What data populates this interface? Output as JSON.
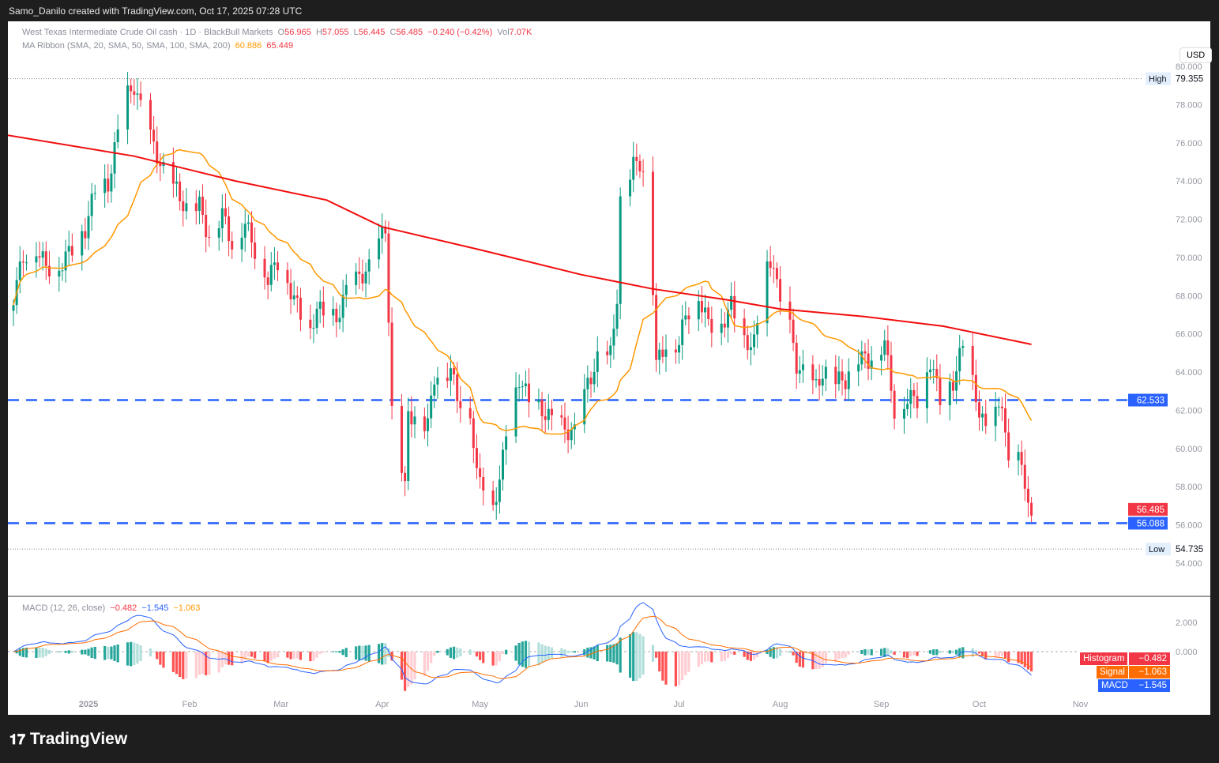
{
  "header": {
    "credit": "Samo_Danilo created with TradingView.com, Oct 17, 2025 07:28 UTC"
  },
  "legend": {
    "symbol": "West Texas Intermediate Crude Oil cash · 1D · BlackBull Markets",
    "o": "56.965",
    "h": "57.055",
    "l": "56.445",
    "c": "56.485",
    "chg": "−0.240 (−0.42%)",
    "vol": "7.07K",
    "ma_label": "MA Ribbon (SMA, 20, SMA, 50, SMA, 100, SMA, 200)",
    "ma20": "60.886",
    "ma200": "65.449",
    "macd_label": "MACD (12, 26, close)",
    "macd_hist": "−0.482",
    "macd_macd": "−1.545",
    "macd_signal": "−1.063"
  },
  "currency": "USD",
  "brand": "TradingView",
  "colors": {
    "up": "#089981",
    "down": "#f23645",
    "ma20": "#ff9800",
    "ma200": "#f20d0d",
    "level": "#2962ff",
    "macd": "#2962ff",
    "signal": "#ff6d00"
  },
  "chart_data": [
    {
      "type": "candlestick",
      "ylim": [
        53.5,
        81
      ],
      "yticks": [
        "80.000",
        "78.000",
        "76.000",
        "74.000",
        "72.000",
        "70.000",
        "68.000",
        "66.000",
        "64.000",
        "62.000",
        "60.000",
        "58.000",
        "56.000",
        "54.000"
      ],
      "xticks": [
        {
          "label": "2025",
          "date": "2025-01-01"
        },
        {
          "label": "Feb",
          "date": "2025-02-01"
        },
        {
          "label": "Mar",
          "date": "2025-03-01"
        },
        {
          "label": "Apr",
          "date": "2025-04-01"
        },
        {
          "label": "May",
          "date": "2025-05-01"
        },
        {
          "label": "Jun",
          "date": "2025-06-01"
        },
        {
          "label": "Jul",
          "date": "2025-07-01"
        },
        {
          "label": "Aug",
          "date": "2025-08-01"
        },
        {
          "label": "Sep",
          "date": "2025-09-01"
        },
        {
          "label": "Oct",
          "date": "2025-10-01"
        },
        {
          "label": "Nov",
          "date": "2025-11-01"
        }
      ],
      "closes": [
        [
          "2024-12-09",
          68.0
        ],
        [
          "2024-12-12",
          70.0
        ],
        [
          "2024-12-16",
          70.5
        ],
        [
          "2024-12-19",
          69.5
        ],
        [
          "2024-12-23",
          69.5
        ],
        [
          "2024-12-27",
          70.5
        ],
        [
          "2024-12-31",
          71.5
        ],
        [
          "2025-01-03",
          73.5
        ],
        [
          "2025-01-07",
          73.8
        ],
        [
          "2025-01-10",
          76.5
        ],
        [
          "2025-01-13",
          78.5
        ],
        [
          "2025-01-15",
          79.0
        ],
        [
          "2025-01-17",
          77.8
        ],
        [
          "2025-01-21",
          75.8
        ],
        [
          "2025-01-24",
          74.5
        ],
        [
          "2025-01-28",
          73.5
        ],
        [
          "2025-01-31",
          72.5
        ],
        [
          "2025-02-04",
          72.7
        ],
        [
          "2025-02-07",
          71.0
        ],
        [
          "2025-02-11",
          72.3
        ],
        [
          "2025-02-14",
          70.7
        ],
        [
          "2025-02-18",
          71.8
        ],
        [
          "2025-02-21",
          70.4
        ],
        [
          "2025-02-25",
          68.9
        ],
        [
          "2025-02-28",
          69.8
        ],
        [
          "2025-03-04",
          68.3
        ],
        [
          "2025-03-07",
          67.0
        ],
        [
          "2025-03-10",
          66.0
        ],
        [
          "2025-03-12",
          67.5
        ],
        [
          "2025-03-14",
          66.9
        ],
        [
          "2025-03-18",
          66.8
        ],
        [
          "2025-03-21",
          68.2
        ],
        [
          "2025-03-25",
          69.0
        ],
        [
          "2025-03-28",
          69.4
        ],
        [
          "2025-04-01",
          71.2
        ],
        [
          "2025-04-02",
          71.6
        ],
        [
          "2025-04-03",
          66.9
        ],
        [
          "2025-04-04",
          61.8
        ],
        [
          "2025-04-08",
          57.8
        ],
        [
          "2025-04-09",
          62.0
        ],
        [
          "2025-04-11",
          61.5
        ],
        [
          "2025-04-15",
          61.2
        ],
        [
          "2025-04-17",
          63.8
        ],
        [
          "2025-04-22",
          64.1
        ],
        [
          "2025-04-24",
          62.7
        ],
        [
          "2025-04-28",
          62.0
        ],
        [
          "2025-04-30",
          58.5
        ],
        [
          "2025-05-02",
          58.3
        ],
        [
          "2025-05-05",
          57.2
        ],
        [
          "2025-05-07",
          58.1
        ],
        [
          "2025-05-09",
          61.0
        ],
        [
          "2025-05-13",
          63.7
        ],
        [
          "2025-05-16",
          62.5
        ],
        [
          "2025-05-20",
          62.0
        ],
        [
          "2025-05-23",
          61.5
        ],
        [
          "2025-05-27",
          61.0
        ],
        [
          "2025-05-30",
          60.8
        ],
        [
          "2025-06-03",
          63.4
        ],
        [
          "2025-06-06",
          64.6
        ],
        [
          "2025-06-10",
          64.9
        ],
        [
          "2025-06-12",
          68.0
        ],
        [
          "2025-06-13",
          72.9
        ],
        [
          "2025-06-17",
          74.8
        ],
        [
          "2025-06-19",
          75.0
        ],
        [
          "2025-06-20",
          74.5
        ],
        [
          "2025-06-23",
          68.5
        ],
        [
          "2025-06-24",
          64.4
        ],
        [
          "2025-06-27",
          65.5
        ],
        [
          "2025-07-01",
          65.5
        ],
        [
          "2025-07-03",
          67.0
        ],
        [
          "2025-07-07",
          68.0
        ],
        [
          "2025-07-10",
          66.5
        ],
        [
          "2025-07-14",
          66.5
        ],
        [
          "2025-07-17",
          67.5
        ],
        [
          "2025-07-21",
          65.6
        ],
        [
          "2025-07-24",
          65.5
        ],
        [
          "2025-07-28",
          69.3
        ],
        [
          "2025-07-30",
          69.9
        ],
        [
          "2025-08-01",
          67.3
        ],
        [
          "2025-08-04",
          66.3
        ],
        [
          "2025-08-06",
          64.4
        ],
        [
          "2025-08-08",
          63.9
        ],
        [
          "2025-08-12",
          63.2
        ],
        [
          "2025-08-14",
          64.0
        ],
        [
          "2025-08-18",
          63.5
        ],
        [
          "2025-08-21",
          63.6
        ],
        [
          "2025-08-25",
          64.8
        ],
        [
          "2025-08-28",
          64.6
        ],
        [
          "2025-09-02",
          65.6
        ],
        [
          "2025-09-05",
          62.0
        ],
        [
          "2025-09-09",
          62.6
        ],
        [
          "2025-09-12",
          62.6
        ],
        [
          "2025-09-16",
          64.6
        ],
        [
          "2025-09-19",
          62.6
        ],
        [
          "2025-09-23",
          63.5
        ],
        [
          "2025-09-26",
          65.4
        ],
        [
          "2025-09-29",
          63.4
        ],
        [
          "2025-10-01",
          62.0
        ],
        [
          "2025-10-03",
          60.9
        ],
        [
          "2025-10-06",
          61.7
        ],
        [
          "2025-10-08",
          62.6
        ],
        [
          "2025-10-10",
          58.9
        ],
        [
          "2025-10-13",
          59.5
        ],
        [
          "2025-10-14",
          58.8
        ],
        [
          "2025-10-15",
          58.3
        ],
        [
          "2025-10-17",
          56.485
        ]
      ],
      "ma200": [
        [
          "2024-12-07",
          76.4
        ],
        [
          "2025-01-15",
          75.3
        ],
        [
          "2025-02-15",
          74.0
        ],
        [
          "2025-03-15",
          73.0
        ],
        [
          "2025-04-01",
          71.6
        ],
        [
          "2025-05-01",
          70.4
        ],
        [
          "2025-06-01",
          69.1
        ],
        [
          "2025-06-23",
          68.35
        ],
        [
          "2025-07-15",
          67.8
        ],
        [
          "2025-08-01",
          67.3
        ],
        [
          "2025-08-27",
          66.9
        ],
        [
          "2025-09-20",
          66.4
        ],
        [
          "2025-10-17",
          65.45
        ]
      ],
      "levels": [
        {
          "value": 62.533,
          "label": "62.533"
        },
        {
          "value": 56.088,
          "label": "56.088"
        }
      ],
      "high": {
        "label": "High",
        "value": "79.355"
      },
      "low": {
        "label": "Low",
        "value": "54.735"
      },
      "last": "56.485"
    },
    {
      "type": "macd",
      "ylim": [
        -3.2,
        3.2
      ],
      "yticks": [
        "2.000",
        "0.000"
      ],
      "tags": {
        "histogram": "Histogram",
        "signal": "Signal",
        "macd": "MACD"
      }
    }
  ]
}
